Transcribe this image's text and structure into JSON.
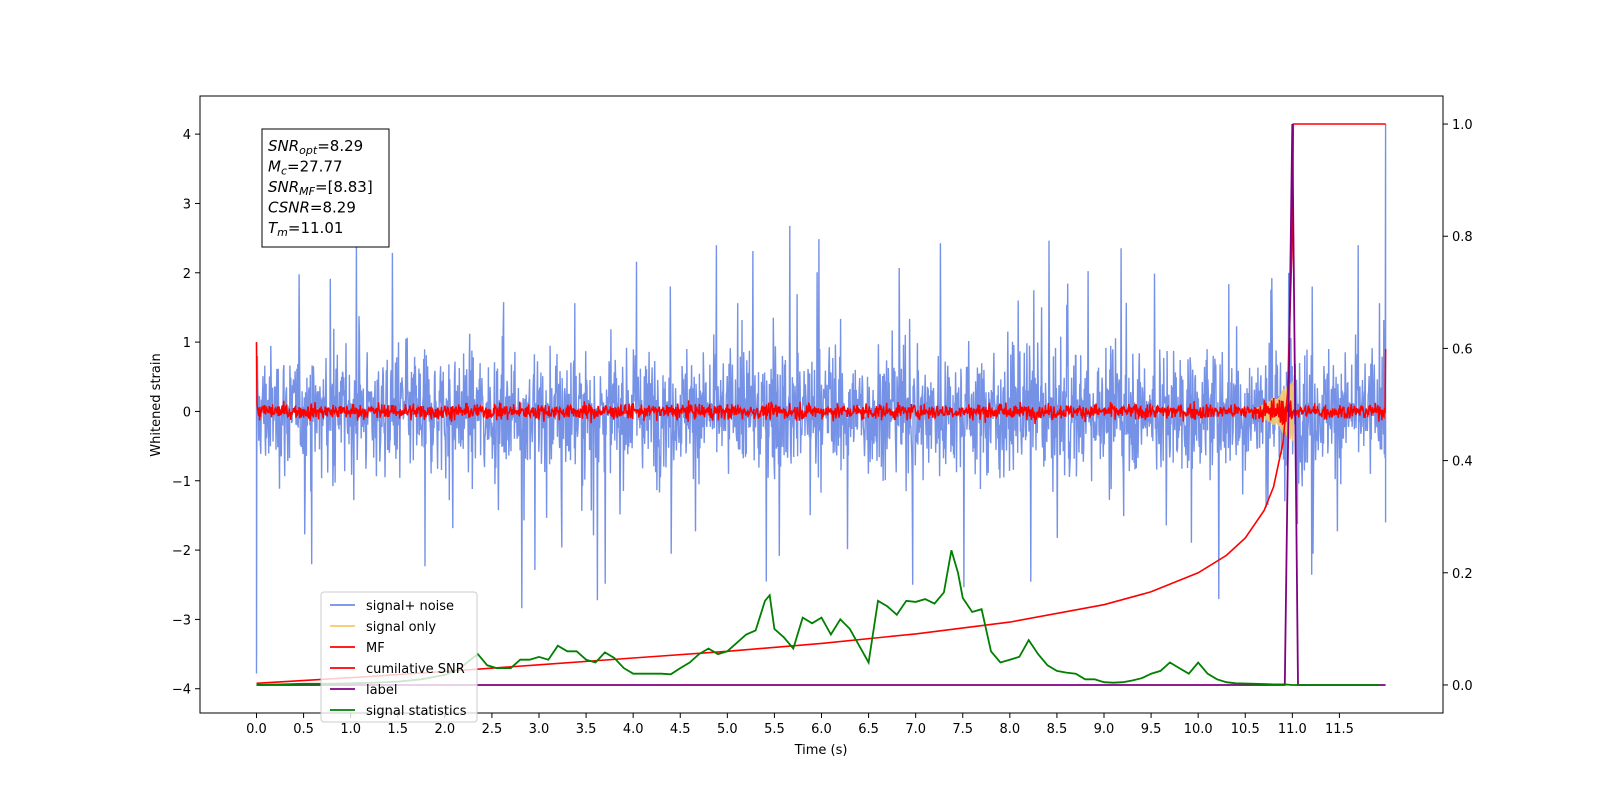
{
  "chart_data": {
    "type": "line",
    "xlabel": "Time (s)",
    "ylabel_left": "Whitened strain",
    "ylabel_right": "",
    "xlim": [
      -0.6,
      12.6
    ],
    "ylim_left": [
      -4.35,
      4.55
    ],
    "ylim_right": [
      -0.05,
      1.05
    ],
    "x_ticks": [
      0.0,
      0.5,
      1.0,
      1.5,
      2.0,
      2.5,
      3.0,
      3.5,
      4.0,
      4.5,
      5.0,
      5.5,
      6.0,
      6.5,
      7.0,
      7.5,
      8.0,
      8.5,
      9.0,
      9.5,
      10.0,
      10.5,
      11.0,
      11.5
    ],
    "x_tick_labels": [
      "0.0",
      "0.5",
      "1.0",
      "1.5",
      "2.0",
      "2.5",
      "3.0",
      "3.5",
      "4.0",
      "4.5",
      "5.0",
      "5.5",
      "6.0",
      "6.5",
      "7.0",
      "7.5",
      "8.0",
      "8.5",
      "9.0",
      "9.5",
      "10.0",
      "10.5",
      "11.0",
      "11.5"
    ],
    "y_left_ticks": [
      4,
      3,
      2,
      1,
      0,
      -1,
      -2,
      -3,
      -4
    ],
    "y_left_tick_labels": [
      "4",
      "3",
      "2",
      "1",
      "0",
      "−1",
      "−2",
      "−3",
      "−4"
    ],
    "y_right_ticks": [
      1.0,
      0.8,
      0.6,
      0.4,
      0.2,
      0.0
    ],
    "y_right_tick_labels": [
      "1.0",
      "0.8",
      "0.6",
      "0.4",
      "0.2",
      "0.0"
    ],
    "grid": false,
    "legend_position": "lower-left",
    "legend": [
      {
        "name": "signal+ noise",
        "color": "#6f8ce6"
      },
      {
        "name": "signal only",
        "color": "#f5c96e"
      },
      {
        "name": "MF",
        "color": "#ff0000"
      },
      {
        "name": "cumilative SNR",
        "color": "#ff0000"
      },
      {
        "name": "label",
        "color": "#800080"
      },
      {
        "name": "signal statistics",
        "color": "#008000"
      }
    ],
    "info_box": [
      {
        "sym": "SNR",
        "sub": "opt",
        "value": "=8.29"
      },
      {
        "sym": "M",
        "sub": "c",
        "value": "=27.77"
      },
      {
        "sym": "SNR",
        "sub": "MF",
        "value": "=[8.83]"
      },
      {
        "sym": "CSNR",
        "sub": "",
        "value": "=8.29"
      },
      {
        "sym": "T",
        "sub": "m",
        "value": "=11.01"
      }
    ],
    "series": [
      {
        "name": "signal+ noise",
        "axis": "left",
        "color": "#6f8ce6",
        "x_range": [
          0.0,
          11.99
        ],
        "amplitude_typical": 1.8,
        "amplitude_peak": 4.2,
        "note_values": "noise band roughly between -2.5 and 2.5, spikes up to 4.15 at x=11.99 and down to -3.8 at x=0.0"
      },
      {
        "name": "signal only",
        "axis": "left",
        "color": "#f5c96e",
        "x_range": [
          10.5,
          11.01
        ],
        "envelope_peak": 0.45
      },
      {
        "name": "MF",
        "axis": "left",
        "color": "#ff0000",
        "x_range": [
          0.0,
          11.99
        ],
        "amplitude_typical": 0.15,
        "start_value": 1.0,
        "end_value": 0.9
      },
      {
        "name": "cumilative SNR",
        "axis": "right",
        "color": "#ff0000",
        "x": [
          0.0,
          1.0,
          2.0,
          3.0,
          4.0,
          5.0,
          6.0,
          7.0,
          8.0,
          9.0,
          9.5,
          10.0,
          10.3,
          10.5,
          10.7,
          10.8,
          10.9,
          10.95,
          11.0,
          11.01,
          11.99
        ],
        "y": [
          0.003,
          0.013,
          0.024,
          0.036,
          0.048,
          0.06,
          0.074,
          0.091,
          0.112,
          0.143,
          0.166,
          0.2,
          0.231,
          0.262,
          0.311,
          0.353,
          0.431,
          0.52,
          0.8,
          1.0,
          1.0
        ]
      },
      {
        "name": "label",
        "axis": "right",
        "color": "#800080",
        "x": [
          0.0,
          10.92,
          11.0,
          11.06,
          11.99
        ],
        "y": [
          0.0,
          0.0,
          1.0,
          0.0,
          0.0
        ]
      },
      {
        "name": "signal statistics",
        "axis": "right",
        "color": "#008000",
        "x": [
          0.0,
          0.25,
          0.5,
          0.75,
          1.0,
          1.25,
          1.5,
          1.75,
          2.0,
          2.15,
          2.25,
          2.35,
          2.45,
          2.55,
          2.7,
          2.8,
          2.9,
          3.0,
          3.1,
          3.2,
          3.3,
          3.4,
          3.5,
          3.6,
          3.7,
          3.8,
          3.9,
          4.0,
          4.1,
          4.2,
          4.3,
          4.4,
          4.5,
          4.6,
          4.7,
          4.8,
          4.9,
          5.0,
          5.1,
          5.2,
          5.3,
          5.4,
          5.45,
          5.5,
          5.6,
          5.7,
          5.8,
          5.9,
          6.0,
          6.1,
          6.2,
          6.3,
          6.4,
          6.5,
          6.6,
          6.7,
          6.8,
          6.9,
          7.0,
          7.1,
          7.2,
          7.3,
          7.38,
          7.45,
          7.5,
          7.6,
          7.7,
          7.8,
          7.9,
          8.0,
          8.1,
          8.2,
          8.3,
          8.4,
          8.5,
          8.6,
          8.7,
          8.8,
          8.9,
          9.0,
          9.1,
          9.2,
          9.3,
          9.4,
          9.5,
          9.6,
          9.7,
          9.8,
          9.9,
          10.0,
          10.1,
          10.2,
          10.3,
          10.4,
          10.6,
          10.8,
          10.92,
          11.0,
          11.2,
          11.4,
          11.6,
          11.93
        ],
        "y": [
          0.0,
          0.001,
          0.002,
          0.002,
          0.003,
          0.004,
          0.006,
          0.01,
          0.018,
          0.028,
          0.042,
          0.055,
          0.035,
          0.03,
          0.03,
          0.045,
          0.045,
          0.05,
          0.045,
          0.07,
          0.06,
          0.06,
          0.045,
          0.04,
          0.058,
          0.048,
          0.03,
          0.02,
          0.02,
          0.02,
          0.02,
          0.019,
          0.03,
          0.04,
          0.055,
          0.065,
          0.055,
          0.06,
          0.075,
          0.09,
          0.097,
          0.15,
          0.16,
          0.1,
          0.085,
          0.065,
          0.12,
          0.11,
          0.12,
          0.09,
          0.117,
          0.1,
          0.07,
          0.04,
          0.15,
          0.14,
          0.125,
          0.15,
          0.148,
          0.153,
          0.145,
          0.165,
          0.24,
          0.2,
          0.155,
          0.13,
          0.135,
          0.06,
          0.04,
          0.045,
          0.05,
          0.08,
          0.055,
          0.035,
          0.025,
          0.022,
          0.02,
          0.01,
          0.01,
          0.005,
          0.004,
          0.005,
          0.008,
          0.012,
          0.02,
          0.025,
          0.04,
          0.03,
          0.02,
          0.04,
          0.02,
          0.01,
          0.005,
          0.003,
          0.002,
          0.001,
          0.001,
          0.0,
          0.0,
          0.0,
          0.0,
          0.0
        ]
      }
    ]
  }
}
